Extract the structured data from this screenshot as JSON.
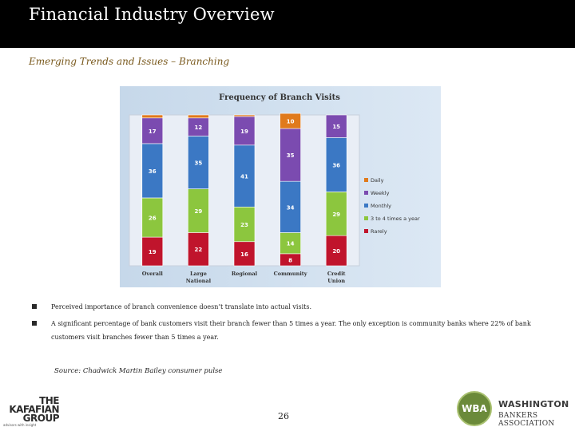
{
  "slide": {
    "title": "Financial Industry Overview",
    "subtitle": "Emerging Trends and Issues – Branching",
    "bullets": [
      "Perceived importance of branch convenience doesn’t translate into actual visits.",
      "A significant percentage of bank customers visit their branch fewer than 5 times a year.  The only exception is community banks where 22% of bank customers visit branches fewer than 5 times a year."
    ],
    "source": "Source:  Chadwick Martin Bailey consumer pulse",
    "page_number": "26"
  },
  "logos": {
    "kafafian_lines": [
      "THE",
      "KAFAFIAN",
      "GROUP"
    ],
    "kafafian_tagline": "advisors with insight",
    "wba_initials": "WBA",
    "wba_name_line1": "WASHINGTON",
    "wba_name_line2": "BANKERS ASSOCIATION"
  },
  "chart_data": {
    "type": "bar",
    "stacked": true,
    "title": "Frequency of Branch Visits",
    "categories": [
      "Overall",
      "Large National",
      "Regional",
      "Community",
      "Credit Union"
    ],
    "series": [
      {
        "name": "Rarely",
        "values": [
          19,
          22,
          16,
          8,
          20
        ],
        "color": "#c0142c"
      },
      {
        "name": "3 to 4 times a year",
        "values": [
          26,
          29,
          23,
          14,
          29
        ],
        "color": "#8cc63e"
      },
      {
        "name": "Monthly",
        "values": [
          36,
          35,
          41,
          34,
          36
        ],
        "color": "#3b78c4"
      },
      {
        "name": "Weekly",
        "values": [
          17,
          12,
          19,
          35,
          15
        ],
        "color": "#7b4bb0"
      },
      {
        "name": "Daily",
        "values": [
          2,
          2,
          1,
          10,
          0
        ],
        "color": "#e07a1c"
      }
    ],
    "value_labels": {
      "Rarely": [
        "19",
        "22",
        "16",
        "8",
        "20"
      ],
      "3 to 4 times a year": [
        "26",
        "29",
        "23",
        "14",
        "29"
      ],
      "Monthly": [
        "36",
        "35",
        "41",
        "34",
        "36"
      ],
      "Weekly": [
        "17",
        "12",
        "19",
        "35",
        "15"
      ],
      "Daily": [
        "",
        "",
        "",
        "10",
        ""
      ]
    },
    "legend_order": [
      "Daily",
      "Weekly",
      "Monthly",
      "3 to 4 times a year",
      "Rarely"
    ],
    "legend_position": "right",
    "ylim": [
      0,
      100
    ],
    "grid": false
  }
}
